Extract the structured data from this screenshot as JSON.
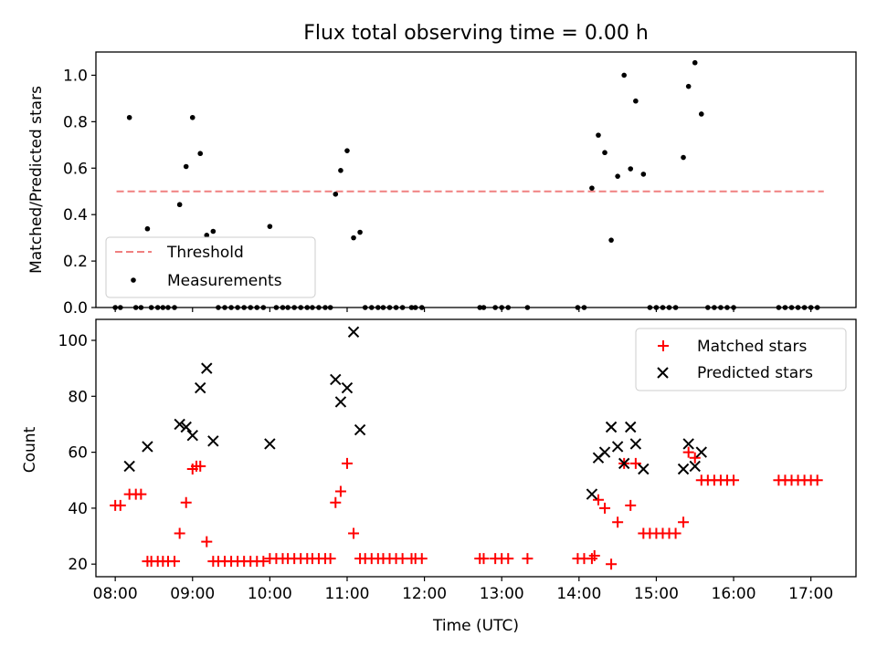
{
  "chart_data": [
    {
      "type": "scatter",
      "title": "Flux total observing time = 0.00 h",
      "xlabel": "",
      "ylabel": "Matched/Predicted stars",
      "xlim": [
        "07:45",
        "17:35"
      ],
      "ylim": [
        0,
        1.1
      ],
      "yticks": [
        "0.0",
        "0.2",
        "0.4",
        "0.6",
        "0.8",
        "1.0"
      ],
      "xticks": [
        "08:00",
        "09:00",
        "10:00",
        "11:00",
        "12:00",
        "13:00",
        "14:00",
        "15:00",
        "16:00",
        "17:00"
      ],
      "grid": false,
      "legend": {
        "placement": "lower-left",
        "entries": [
          "Threshold",
          "Measurements"
        ]
      },
      "series": [
        {
          "name": "Threshold",
          "kind": "dashed-line",
          "color": "#f08080",
          "x": [
            "08:01",
            "17:10"
          ],
          "y": [
            0.5,
            0.5
          ]
        },
        {
          "name": "Measurements",
          "kind": "points",
          "color": "#000000",
          "points": [
            [
              "08:00",
              0.0
            ],
            [
              "08:04",
              0.0
            ],
            [
              "08:11",
              0.818
            ],
            [
              "08:16",
              0.0
            ],
            [
              "08:20",
              0.0
            ],
            [
              "08:25",
              0.339
            ],
            [
              "08:28",
              0.0
            ],
            [
              "08:33",
              0.0
            ],
            [
              "08:37",
              0.0
            ],
            [
              "08:41",
              0.0
            ],
            [
              "08:46",
              0.0
            ],
            [
              "08:50",
              0.443
            ],
            [
              "08:55",
              0.607
            ],
            [
              "09:00",
              0.818
            ],
            [
              "09:06",
              0.663
            ],
            [
              "09:11",
              0.311
            ],
            [
              "09:16",
              0.328
            ],
            [
              "09:20",
              0.0
            ],
            [
              "09:25",
              0.0
            ],
            [
              "09:30",
              0.0
            ],
            [
              "09:35",
              0.0
            ],
            [
              "09:40",
              0.0
            ],
            [
              "09:45",
              0.0
            ],
            [
              "09:50",
              0.0
            ],
            [
              "09:55",
              0.0
            ],
            [
              "10:00",
              0.349
            ],
            [
              "10:05",
              0.0
            ],
            [
              "10:10",
              0.0
            ],
            [
              "10:14",
              0.0
            ],
            [
              "10:19",
              0.0
            ],
            [
              "10:24",
              0.0
            ],
            [
              "10:29",
              0.0
            ],
            [
              "10:33",
              0.0
            ],
            [
              "10:38",
              0.0
            ],
            [
              "10:43",
              0.0
            ],
            [
              "10:47",
              0.0
            ],
            [
              "10:51",
              0.488
            ],
            [
              "10:55",
              0.59
            ],
            [
              "11:00",
              0.675
            ],
            [
              "11:05",
              0.3
            ],
            [
              "11:10",
              0.324
            ],
            [
              "11:14",
              0.0
            ],
            [
              "11:19",
              0.0
            ],
            [
              "11:24",
              0.0
            ],
            [
              "11:28",
              0.0
            ],
            [
              "11:33",
              0.0
            ],
            [
              "11:38",
              0.0
            ],
            [
              "11:43",
              0.0
            ],
            [
              "11:50",
              0.0
            ],
            [
              "11:53",
              0.0
            ],
            [
              "11:58",
              0.0
            ],
            [
              "12:43",
              0.0
            ],
            [
              "12:46",
              0.0
            ],
            [
              "12:55",
              0.0
            ],
            [
              "13:00",
              0.0
            ],
            [
              "13:05",
              0.0
            ],
            [
              "13:20",
              0.0
            ],
            [
              "13:59",
              0.0
            ],
            [
              "14:04",
              0.0
            ],
            [
              "14:10",
              0.514
            ],
            [
              "14:15",
              0.742
            ],
            [
              "14:20",
              0.667
            ],
            [
              "14:25",
              0.29
            ],
            [
              "14:30",
              0.565
            ],
            [
              "14:35",
              1.0
            ],
            [
              "14:40",
              0.597
            ],
            [
              "14:44",
              0.889
            ],
            [
              "14:50",
              0.574
            ],
            [
              "14:55",
              0.0
            ],
            [
              "15:00",
              0.0
            ],
            [
              "15:05",
              0.0
            ],
            [
              "15:10",
              0.0
            ],
            [
              "15:15",
              0.0
            ],
            [
              "15:21",
              0.646
            ],
            [
              "15:25",
              0.952
            ],
            [
              "15:30",
              1.054
            ],
            [
              "15:35",
              0.833
            ],
            [
              "15:40",
              0.0
            ],
            [
              "15:45",
              0.0
            ],
            [
              "15:50",
              0.0
            ],
            [
              "15:55",
              0.0
            ],
            [
              "16:00",
              0.0
            ],
            [
              "16:35",
              0.0
            ],
            [
              "16:40",
              0.0
            ],
            [
              "16:45",
              0.0
            ],
            [
              "16:50",
              0.0
            ],
            [
              "16:55",
              0.0
            ],
            [
              "17:00",
              0.0
            ],
            [
              "17:05",
              0.0
            ]
          ]
        }
      ]
    },
    {
      "type": "scatter",
      "title": "",
      "xlabel": "Time (UTC)",
      "ylabel": "Count",
      "xlim": [
        "07:45",
        "17:35"
      ],
      "ylim": [
        15.5,
        107.5
      ],
      "yticks": [
        "20",
        "40",
        "60",
        "80",
        "100"
      ],
      "xticks": [
        "08:00",
        "09:00",
        "10:00",
        "11:00",
        "12:00",
        "13:00",
        "14:00",
        "15:00",
        "16:00",
        "17:00"
      ],
      "grid": false,
      "legend": {
        "placement": "top-right",
        "entries": [
          "Matched stars",
          "Predicted stars"
        ]
      },
      "series": [
        {
          "name": "Matched stars",
          "marker": "+",
          "color": "#ff0000",
          "points": [
            [
              "08:00",
              41
            ],
            [
              "08:04",
              41
            ],
            [
              "08:11",
              45
            ],
            [
              "08:16",
              45
            ],
            [
              "08:20",
              45
            ],
            [
              "08:25",
              21
            ],
            [
              "08:28",
              21
            ],
            [
              "08:33",
              21
            ],
            [
              "08:37",
              21
            ],
            [
              "08:41",
              21
            ],
            [
              "08:46",
              21
            ],
            [
              "08:50",
              31
            ],
            [
              "08:55",
              42
            ],
            [
              "09:00",
              54
            ],
            [
              "09:03",
              55
            ],
            [
              "09:06",
              55
            ],
            [
              "09:11",
              28
            ],
            [
              "09:16",
              21
            ],
            [
              "09:20",
              21
            ],
            [
              "09:25",
              21
            ],
            [
              "09:30",
              21
            ],
            [
              "09:35",
              21
            ],
            [
              "09:40",
              21
            ],
            [
              "09:45",
              21
            ],
            [
              "09:50",
              21
            ],
            [
              "09:55",
              21
            ],
            [
              "10:00",
              22
            ],
            [
              "10:05",
              22
            ],
            [
              "10:10",
              22
            ],
            [
              "10:14",
              22
            ],
            [
              "10:19",
              22
            ],
            [
              "10:24",
              22
            ],
            [
              "10:29",
              22
            ],
            [
              "10:33",
              22
            ],
            [
              "10:38",
              22
            ],
            [
              "10:43",
              22
            ],
            [
              "10:47",
              22
            ],
            [
              "10:51",
              42
            ],
            [
              "10:55",
              46
            ],
            [
              "11:00",
              56
            ],
            [
              "11:05",
              31
            ],
            [
              "11:10",
              22
            ],
            [
              "11:14",
              22
            ],
            [
              "11:19",
              22
            ],
            [
              "11:24",
              22
            ],
            [
              "11:28",
              22
            ],
            [
              "11:33",
              22
            ],
            [
              "11:38",
              22
            ],
            [
              "11:43",
              22
            ],
            [
              "11:50",
              22
            ],
            [
              "11:53",
              22
            ],
            [
              "11:58",
              22
            ],
            [
              "12:43",
              22
            ],
            [
              "12:46",
              22
            ],
            [
              "12:55",
              22
            ],
            [
              "13:00",
              22
            ],
            [
              "13:05",
              22
            ],
            [
              "13:20",
              22
            ],
            [
              "13:59",
              22
            ],
            [
              "14:04",
              22
            ],
            [
              "14:10",
              22
            ],
            [
              "14:12",
              23
            ],
            [
              "14:15",
              43
            ],
            [
              "14:20",
              40
            ],
            [
              "14:25",
              20
            ],
            [
              "14:30",
              35
            ],
            [
              "14:35",
              56
            ],
            [
              "14:40",
              41
            ],
            [
              "14:44",
              56
            ],
            [
              "14:50",
              31
            ],
            [
              "14:55",
              31
            ],
            [
              "15:00",
              31
            ],
            [
              "15:05",
              31
            ],
            [
              "15:10",
              31
            ],
            [
              "15:15",
              31
            ],
            [
              "15:21",
              35
            ],
            [
              "15:25",
              60
            ],
            [
              "15:30",
              58
            ],
            [
              "15:35",
              50
            ],
            [
              "15:40",
              50
            ],
            [
              "15:45",
              50
            ],
            [
              "15:50",
              50
            ],
            [
              "15:55",
              50
            ],
            [
              "16:00",
              50
            ],
            [
              "16:35",
              50
            ],
            [
              "16:40",
              50
            ],
            [
              "16:45",
              50
            ],
            [
              "16:50",
              50
            ],
            [
              "16:55",
              50
            ],
            [
              "17:00",
              50
            ],
            [
              "17:05",
              50
            ]
          ]
        },
        {
          "name": "Predicted stars",
          "marker": "x",
          "color": "#000000",
          "points": [
            [
              "08:11",
              55
            ],
            [
              "08:25",
              62
            ],
            [
              "08:50",
              70
            ],
            [
              "08:55",
              69
            ],
            [
              "09:00",
              66
            ],
            [
              "09:06",
              83
            ],
            [
              "09:11",
              90
            ],
            [
              "09:16",
              64
            ],
            [
              "10:00",
              63
            ],
            [
              "10:51",
              86
            ],
            [
              "10:55",
              78
            ],
            [
              "11:00",
              83
            ],
            [
              "11:05",
              103
            ],
            [
              "11:10",
              68
            ],
            [
              "14:10",
              45
            ],
            [
              "14:15",
              58
            ],
            [
              "14:20",
              60
            ],
            [
              "14:25",
              69
            ],
            [
              "14:30",
              62
            ],
            [
              "14:35",
              56
            ],
            [
              "14:40",
              69
            ],
            [
              "14:44",
              63
            ],
            [
              "14:50",
              54
            ],
            [
              "15:21",
              54
            ],
            [
              "15:25",
              63
            ],
            [
              "15:30",
              55
            ],
            [
              "15:35",
              60
            ]
          ]
        }
      ]
    }
  ]
}
